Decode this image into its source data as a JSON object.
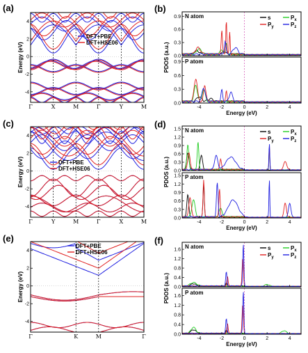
{
  "colors": {
    "pbe": "#1f1fe0",
    "hse": "#e01f1f",
    "s": "#000000",
    "px": "#22cc22",
    "py": "#e01f1f",
    "pz": "#1f1fe0"
  },
  "chart_data": [
    {
      "type": "line",
      "panel": "(a)",
      "ylabel": "Energy (eV)",
      "ylim": [
        -5.2,
        5
      ],
      "yticks": [
        "-4",
        "-2",
        "0",
        "2",
        "4"
      ],
      "kpoints": [
        "Γ",
        "X",
        "M",
        "Γ",
        "Y",
        "M"
      ],
      "kpos": [
        0,
        0.2,
        0.4,
        0.6,
        0.8,
        1
      ],
      "legend": [
        "DFT+PBE",
        "DFT+HSE06"
      ],
      "series": [
        {
          "name": "DFT+PBE",
          "bands": 12
        },
        {
          "name": "DFT+HSE06",
          "bands": 12
        }
      ]
    },
    {
      "type": "line",
      "panel": "(c)",
      "ylabel": "Energy (eV)",
      "ylim": [
        -5.2,
        5
      ],
      "yticks": [
        "-4",
        "-2",
        "0",
        "2",
        "4"
      ],
      "kpoints": [
        "Γ",
        "Y",
        "M",
        "Γ",
        "X",
        "M"
      ],
      "kpos": [
        0,
        0.2,
        0.4,
        0.6,
        0.8,
        1
      ],
      "legend": [
        "DFT+PBE",
        "DFT+HSE06"
      ],
      "series": [
        {
          "name": "DFT+PBE",
          "bands": 14
        },
        {
          "name": "DFT+HSE06",
          "bands": 14
        }
      ]
    },
    {
      "type": "line",
      "panel": "(e)",
      "ylabel": "Energy (eV)",
      "ylim": [
        -5.2,
        5
      ],
      "yticks": [
        "-4",
        "-2",
        "0",
        "2",
        "4"
      ],
      "kpoints": [
        "Γ",
        "K",
        "M",
        "Γ"
      ],
      "kpos": [
        0,
        0.4,
        0.6,
        1
      ],
      "legend": [
        "DFT+PBE",
        "DFT+HSE06"
      ],
      "series": [
        {
          "name": "DFT+PBE",
          "bands": 6
        },
        {
          "name": "DFT+HSE06",
          "bands": 6
        }
      ]
    },
    {
      "type": "line",
      "panel": "(b)",
      "ylabel": "PDOS (a.u.)",
      "xlabel": "Energy (eV)",
      "xlim": [
        -5.5,
        5
      ],
      "xticks": [
        "-4",
        "-2",
        "0",
        "2",
        "4"
      ],
      "subpanels": [
        {
          "atom": "N atom",
          "ylim": [
            0,
            1
          ],
          "yticks": [
            "0.0",
            "0.3",
            "0.6",
            "0.9"
          ]
        },
        {
          "atom": "P atom",
          "ylim": [
            0,
            1
          ],
          "yticks": [
            "0.0",
            "0.3",
            "0.6",
            "0.9"
          ]
        }
      ],
      "legend": [
        "s",
        "Px",
        "Py",
        "Pz"
      ]
    },
    {
      "type": "line",
      "panel": "(d)",
      "ylabel": "PDOS (a.u.)",
      "xlabel": "Energy (eV)",
      "xlim": [
        -5.5,
        5
      ],
      "xticks": [
        "-4",
        "-2",
        "0",
        "2",
        "4"
      ],
      "subpanels": [
        {
          "atom": "N atom",
          "ylim": [
            0,
            1.6
          ],
          "yticks": [
            "0.0",
            "0.3",
            "0.6",
            "0.9",
            "1.2",
            "1.5"
          ]
        },
        {
          "atom": "P atom",
          "ylim": [
            0,
            1.6
          ],
          "yticks": [
            "0.0",
            "0.3",
            "0.6",
            "0.9",
            "1.2",
            "1.5"
          ]
        }
      ],
      "legend": [
        "s",
        "Px",
        "Py",
        "Pz"
      ]
    },
    {
      "type": "line",
      "panel": "(f)",
      "ylabel": "PDOS (a.u.)",
      "xlabel": "Energy (eV)",
      "xlim": [
        -5.5,
        5
      ],
      "xticks": [
        "-4",
        "-2",
        "0",
        "2",
        "4"
      ],
      "subpanels": [
        {
          "atom": "N atom",
          "ylim": [
            0,
            1.9
          ],
          "yticks": [
            "0.0",
            "0.4",
            "0.8",
            "1.2",
            "1.6"
          ]
        },
        {
          "atom": "P atom",
          "ylim": [
            0,
            1.9
          ],
          "yticks": [
            "0.0",
            "0.4",
            "0.8",
            "1.2",
            "1.6"
          ]
        }
      ],
      "legend": [
        "s",
        "Px",
        "Py",
        "Pz"
      ]
    }
  ]
}
